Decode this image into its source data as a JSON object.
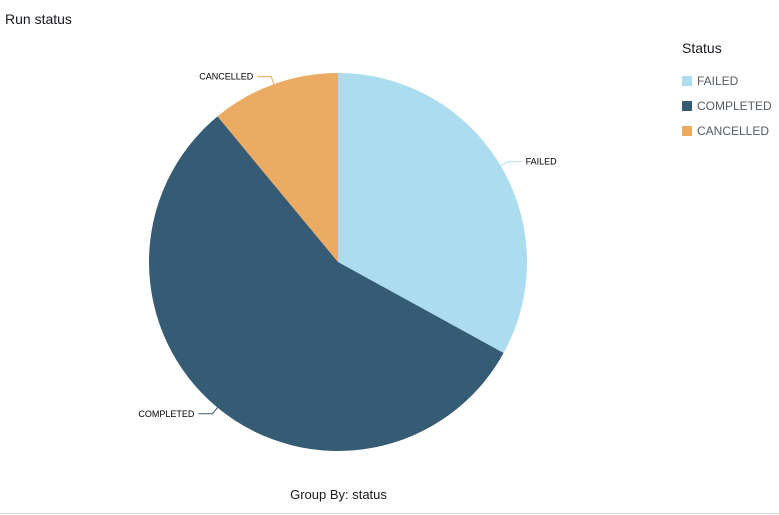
{
  "title": "Run status",
  "group_by_label": "Group By: status",
  "legend": {
    "title": "Status"
  },
  "chart_data": {
    "type": "pie",
    "title": "Run status",
    "xlabel": "Group By: status",
    "legend_title": "Status",
    "legend_position": "right",
    "slices": [
      {
        "label": "FAILED",
        "value": 33,
        "color": "#acdcef"
      },
      {
        "label": "COMPLETED",
        "value": 56,
        "color": "#365b74"
      },
      {
        "label": "CANCELLED",
        "value": 11,
        "color": "#ebab63"
      }
    ]
  }
}
